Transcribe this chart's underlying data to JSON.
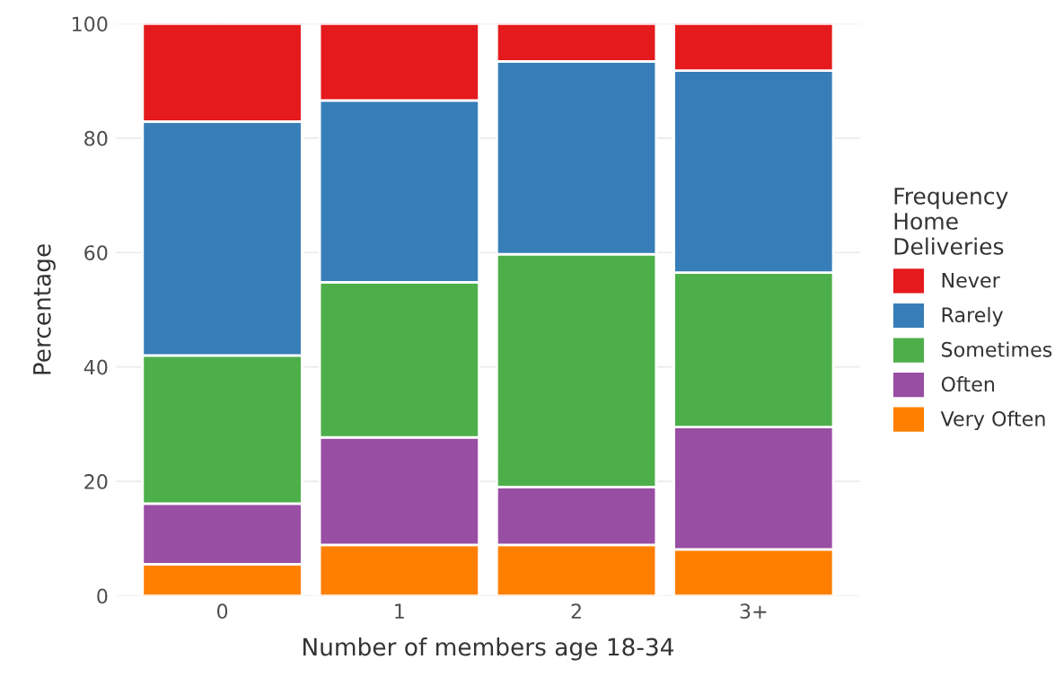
{
  "chart_data": {
    "type": "bar",
    "stacked": true,
    "xlabel": "Number of members age 18-34",
    "ylabel": "Percentage",
    "legend_title": "Frequency\nHome\nDeliveries",
    "categories": [
      "0",
      "1",
      "2",
      "3+"
    ],
    "series": [
      {
        "name": "Very Often",
        "color": "#ff7f00",
        "values": [
          5.5,
          8.9,
          8.9,
          8.1
        ]
      },
      {
        "name": "Often",
        "color": "#984ea3",
        "values": [
          10.6,
          18.8,
          10.1,
          21.4
        ]
      },
      {
        "name": "Sometimes",
        "color": "#4daf4a",
        "values": [
          25.9,
          27.1,
          40.7,
          27.0
        ]
      },
      {
        "name": "Rarely",
        "color": "#377eb8",
        "values": [
          40.9,
          31.8,
          33.7,
          35.3
        ]
      },
      {
        "name": "Never",
        "color": "#e41a1c",
        "values": [
          17.1,
          13.4,
          6.6,
          8.2
        ]
      }
    ],
    "ylim": [
      0,
      100
    ],
    "yticks": [
      0,
      20,
      40,
      60,
      80,
      100
    ],
    "grid": true,
    "legend": "right"
  }
}
